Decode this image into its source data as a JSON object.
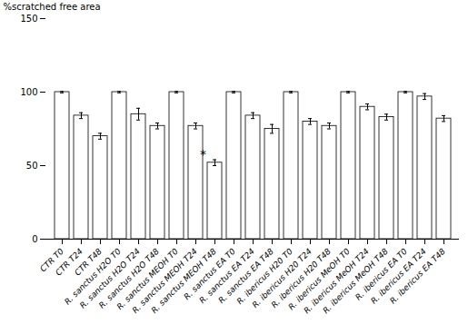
{
  "chart_data": {
    "type": "bar",
    "categories": [
      "CTR T0",
      "CTR T24",
      "CTR T48",
      "R. sanctus H2O T0",
      "R. sanctus H2O T24",
      "R. sanctus H2O T48",
      "R. sanctus MEOH T0",
      "R. sanctus MEOH T24",
      "R. sanctus MEOH T48",
      "R. sanctus EA T0",
      "R. sanctus EA T24",
      "R. sanctus EA T48",
      "R. ibericus H20 T0",
      "R. ibericus H20 T24",
      "R. ibericus H20 T48",
      "R. ibericus MeOH T0",
      "R. ibericus MeOH T24",
      "R. ibericus MeOH T48",
      "R. ibericus EA T0",
      "R. ibericus EA T24",
      "R. ibericus EA T48"
    ],
    "values": [
      100,
      84,
      70,
      100,
      85,
      77,
      100,
      77,
      52,
      100,
      84,
      75,
      100,
      80,
      77,
      100,
      90,
      83,
      100,
      97,
      82
    ],
    "errors": [
      0.5,
      2,
      2,
      0.5,
      4,
      2,
      0.5,
      2,
      2,
      0.5,
      2,
      3,
      0.5,
      2,
      2,
      0.5,
      2,
      2,
      0.5,
      2,
      2
    ],
    "ylabel": "%scratched free area",
    "ylim": [
      0,
      150
    ],
    "yticks": [
      0,
      50,
      100,
      150
    ],
    "grid": false,
    "annotations": [
      {
        "text": "*",
        "category": "R. sanctus MEOH T48"
      }
    ]
  }
}
